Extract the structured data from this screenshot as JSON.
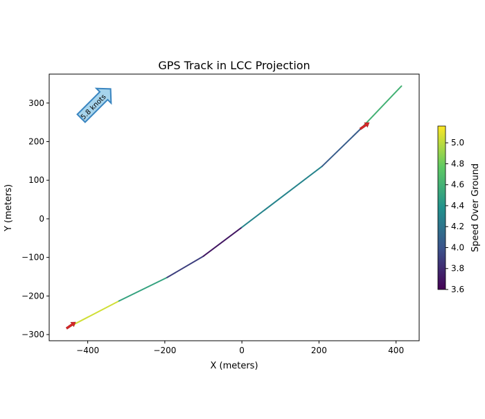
{
  "chart_data": {
    "type": "line",
    "title": "GPS Track in LCC Projection",
    "xlabel": "X (meters)",
    "ylabel": "Y (meters)",
    "xlim": [
      -500,
      460
    ],
    "ylim": [
      -316,
      375
    ],
    "xticks": [
      -400,
      -200,
      0,
      200,
      400
    ],
    "yticks": [
      -300,
      -200,
      -100,
      0,
      100,
      200,
      300
    ],
    "points": [
      {
        "x": -452,
        "y": -282,
        "speed": 5.05
      },
      {
        "x": -319,
        "y": -213,
        "speed": 4.5
      },
      {
        "x": -194,
        "y": -152,
        "speed": 3.9
      },
      {
        "x": -100,
        "y": -97,
        "speed": 3.7
      },
      {
        "x": 0,
        "y": -22,
        "speed": 4.3
      },
      {
        "x": 208,
        "y": 136,
        "speed": 4.05
      },
      {
        "x": 310,
        "y": 235,
        "speed": 4.6
      },
      {
        "x": 414,
        "y": 344
      }
    ],
    "direction_arrows": [
      {
        "x": -452,
        "y": -282
      },
      {
        "x": 310,
        "y": 235
      }
    ],
    "arrow_color": "#d62728",
    "annotation": "5.8 knots",
    "colorbar": {
      "label": "Speed Over Ground",
      "min": 3.6,
      "max": 5.16,
      "ticks": [
        "3.6",
        "3.8",
        "4.0",
        "4.2",
        "4.4",
        "4.6",
        "4.8",
        "5.0"
      ],
      "colormap": "viridis"
    }
  }
}
